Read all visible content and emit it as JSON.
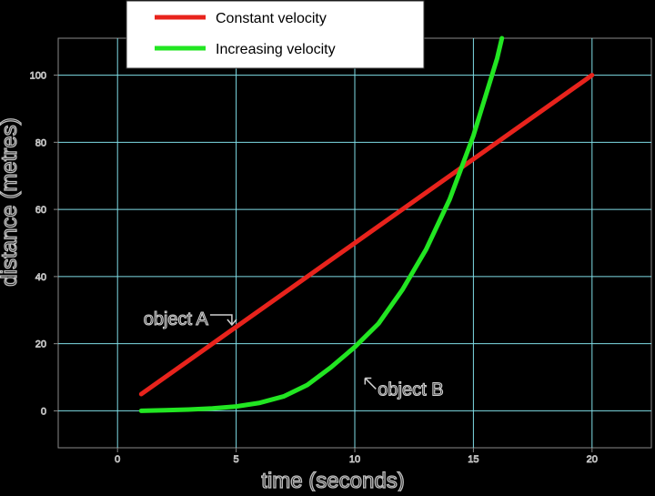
{
  "chart_data": {
    "type": "line",
    "title": "",
    "xlabel": "time (seconds)",
    "ylabel": "distance (metres)",
    "xlim": [
      -2.5,
      22.5
    ],
    "ylim": [
      -11,
      111
    ],
    "x_ticks": [
      0,
      5,
      10,
      15,
      20
    ],
    "y_ticks": [
      0,
      20,
      40,
      60,
      80,
      100
    ],
    "x_tick_labels": [
      "0",
      "5",
      "10",
      "15",
      "20"
    ],
    "y_tick_labels": [
      "0",
      "20",
      "40",
      "60",
      "80",
      "100"
    ],
    "grid": true,
    "legend": "top",
    "series": [
      {
        "name": "Constant velocity",
        "color": "#e8231c",
        "x": [
          1,
          20
        ],
        "y": [
          5,
          100
        ]
      },
      {
        "name": "Increasing velocity",
        "color": "#22e622",
        "x": [
          1,
          2,
          3,
          4,
          5,
          6,
          7,
          8,
          9,
          10,
          11,
          12,
          13,
          14,
          15,
          16,
          16.2
        ],
        "y": [
          0,
          0.2,
          0.4,
          0.7,
          1.3,
          2.4,
          4.3,
          7.7,
          13,
          19,
          26,
          36,
          48,
          63,
          82,
          105,
          111
        ]
      }
    ],
    "annotations": [
      {
        "text": "object A",
        "x": 3.9,
        "y": 27.5
      },
      {
        "text": "object B",
        "x": 13.5,
        "y": 6.5
      }
    ]
  }
}
